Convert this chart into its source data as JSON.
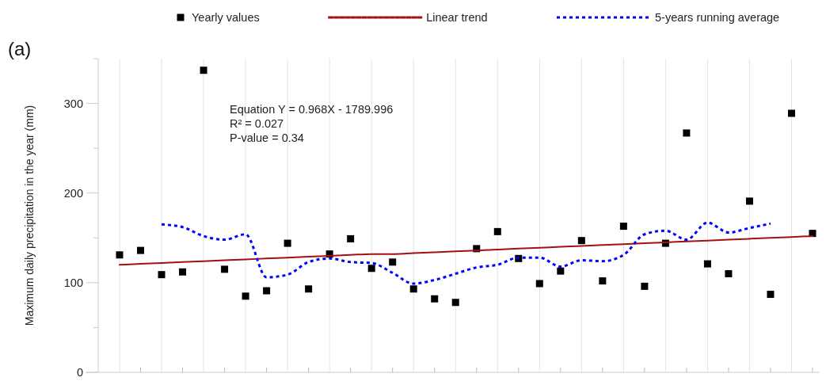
{
  "chart_data": {
    "type": "scatter",
    "ylabel": "Maximum daily precipitation in the year (mm)",
    "categories": [
      null,
      null,
      null,
      null,
      null,
      null,
      null,
      null,
      null,
      null,
      null,
      null,
      null,
      null,
      null,
      null,
      null,
      null,
      null,
      null,
      null,
      null,
      null,
      null,
      null,
      null,
      null,
      null,
      null,
      null,
      null,
      null,
      null,
      null
    ],
    "series": [
      {
        "name": "Yearly values",
        "color": "#000000",
        "marker": "square",
        "values": [
          131,
          136,
          109,
          112,
          337,
          115,
          85,
          91,
          144,
          93,
          132,
          149,
          116,
          123,
          93,
          82,
          78,
          138,
          157,
          127,
          99,
          113,
          147,
          102,
          163,
          96,
          144,
          267,
          121,
          110,
          191,
          87,
          289,
          155
        ]
      },
      {
        "name": "Linear trend",
        "type": "line",
        "color": "#a50f0f",
        "marker": "none",
        "line_style": "solid",
        "values": [
          120,
          121,
          122,
          123,
          124,
          125,
          126,
          127,
          128,
          129,
          130,
          131,
          132,
          132,
          133,
          134,
          135,
          136,
          137,
          138,
          139,
          140,
          141,
          142,
          143,
          144,
          145,
          146,
          147,
          148,
          149,
          150,
          151,
          152
        ]
      },
      {
        "name": "5-years running average",
        "type": "line",
        "color": "#0000ff",
        "marker": "none",
        "line_style": "dotted",
        "values": [
          null,
          null,
          165,
          162,
          152,
          148,
          154,
          106,
          109,
          123,
          127,
          123,
          122,
          111,
          99,
          103,
          110,
          117,
          120,
          128,
          128,
          118,
          125,
          124,
          131,
          154,
          158,
          148,
          167,
          156,
          161,
          166,
          null,
          null
        ]
      }
    ],
    "ylim": [
      0,
      350
    ],
    "yticks": [
      0,
      {
        "value": 50,
        "label": null
      },
      100,
      {
        "value": 150,
        "label": null
      },
      200,
      {
        "value": 250,
        "label": null
      },
      300,
      {
        "value": 350,
        "label": null
      }
    ],
    "grid": "x",
    "legend": "top",
    "annotations": [
      "(a)",
      "Equation Y = 0.968X - 1789.996",
      "R² = 0.027",
      "P-value = 0.34"
    ]
  }
}
